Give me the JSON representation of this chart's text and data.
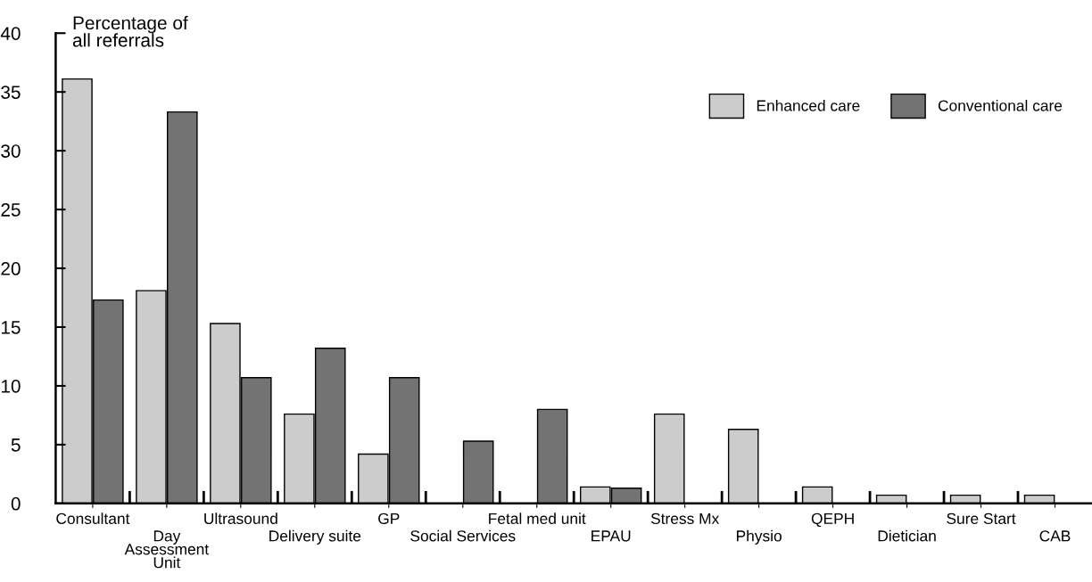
{
  "chart_data": {
    "type": "bar",
    "ylabel": "Percentage of\nall referrals",
    "categories": [
      "Consultant",
      "Day\nAssessment\nUnit",
      "Ultrasound",
      "Delivery suite",
      "GP",
      "Social Services",
      "Fetal med unit",
      "EPAU",
      "Stress Mx",
      "Physio",
      "QEPH",
      "Dietician",
      "Sure Start",
      "CAB"
    ],
    "series": [
      {
        "name": "Enhanced care",
        "color": "#cccccc",
        "values": [
          36.1,
          18.1,
          15.3,
          7.6,
          4.2,
          null,
          null,
          1.4,
          7.6,
          6.3,
          1.4,
          0.7,
          0.7,
          0.7
        ]
      },
      {
        "name": "Conventional care",
        "color": "#737373",
        "values": [
          17.3,
          33.3,
          10.7,
          13.2,
          10.7,
          5.3,
          8.0,
          1.3,
          null,
          null,
          null,
          null,
          null,
          null
        ]
      }
    ],
    "ylim": [
      0,
      40
    ],
    "yticks": [
      0,
      5,
      10,
      15,
      20,
      25,
      30,
      35,
      40
    ],
    "grid": false,
    "legend": "top right"
  }
}
